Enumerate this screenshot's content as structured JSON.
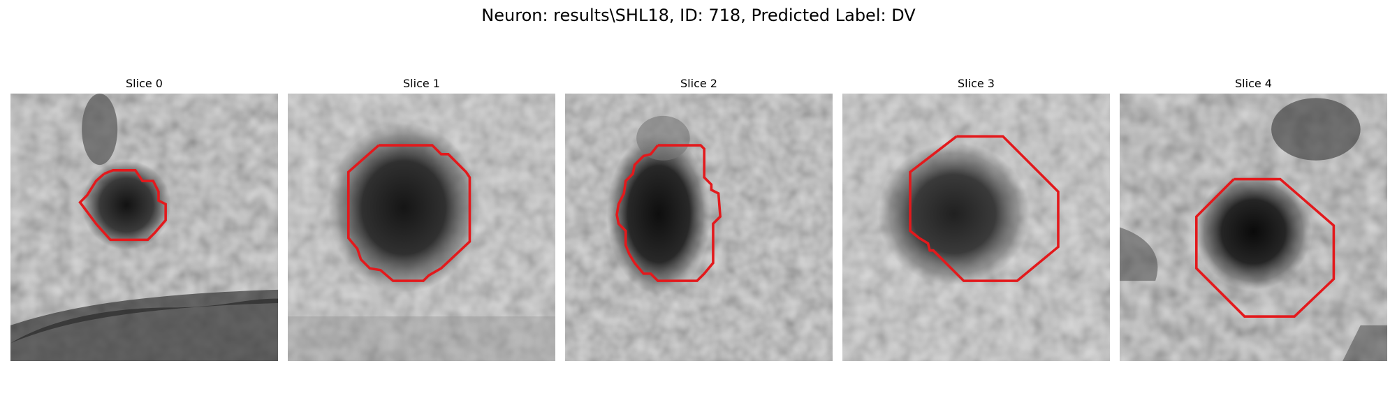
{
  "figure": {
    "title": "Neuron: results\\SHL18, ID: 718, Predicted Label: DV"
  },
  "colors": {
    "contour": "#e3191c",
    "background": "#ffffff"
  },
  "panels": [
    {
      "title": "Slice 0"
    },
    {
      "title": "Slice 1"
    },
    {
      "title": "Slice 2"
    },
    {
      "title": "Slice 3"
    },
    {
      "title": "Slice 4"
    }
  ]
}
